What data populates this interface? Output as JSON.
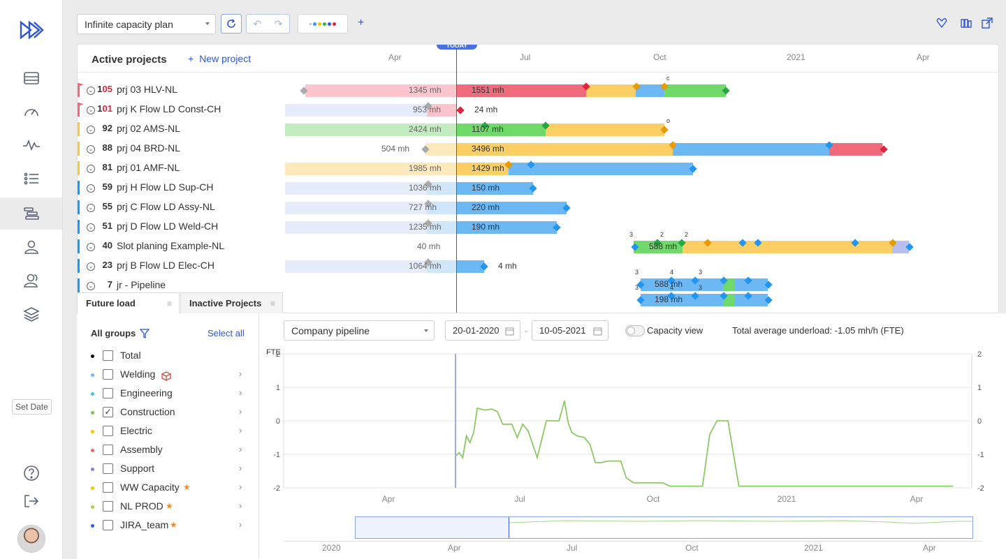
{
  "toolbar": {
    "plan_select": "Infinite capacity plan",
    "add": "+"
  },
  "gantt": {
    "header_title": "Active projects",
    "new_project": "New project",
    "today": "TODAY",
    "months": [
      "Apr",
      "Jul",
      "Oct",
      "2021",
      "Apr"
    ],
    "rows": [
      {
        "prio_a": "1",
        "prio_b": "05",
        "name": "prj 03 HLV-NL",
        "color": "#f06a7c",
        "flagged": true,
        "left_mh": "1345 mh",
        "right_mh": "1551 mh"
      },
      {
        "prio_a": "1",
        "prio_b": "01",
        "name": "prj K Flow LD Const-CH",
        "color": "#f06a7c",
        "flagged": true,
        "left_mh": "953 mh",
        "right_mh": "24 mh"
      },
      {
        "prio_a": "",
        "prio_b": "92",
        "name": "prj 02 AMS-NL",
        "color": "#f9c64a",
        "flagged": false,
        "left_mh": "2424 mh",
        "right_mh": "1107 mh"
      },
      {
        "prio_a": "",
        "prio_b": "88",
        "name": "prj 04 BRD-NL",
        "color": "#f9c64a",
        "flagged": false,
        "left_mh": "504 mh",
        "right_mh": "3496 mh"
      },
      {
        "prio_a": "",
        "prio_b": "81",
        "name": "prj 01 AMF-NL",
        "color": "#f9c64a",
        "flagged": false,
        "left_mh": "1985 mh",
        "right_mh": "1429 mh"
      },
      {
        "prio_a": "",
        "prio_b": "59",
        "name": "prj H Flow LD Sup-CH",
        "color": "#2196f3",
        "flagged": false,
        "left_mh": "1036 mh",
        "right_mh": "150 mh"
      },
      {
        "prio_a": "",
        "prio_b": "55",
        "name": "prj C Flow LD Assy-NL",
        "color": "#2196f3",
        "flagged": false,
        "left_mh": "727 mh",
        "right_mh": "220 mh"
      },
      {
        "prio_a": "",
        "prio_b": "51",
        "name": "prj D Flow LD Weld-CH",
        "color": "#2196f3",
        "flagged": false,
        "left_mh": "1235 mh",
        "right_mh": "190 mh"
      },
      {
        "prio_a": "",
        "prio_b": "40",
        "name": "Slot planing Example-NL",
        "color": "#2196f3",
        "flagged": false,
        "left_mh": "40 mh",
        "right_mh": "588 mh"
      },
      {
        "prio_a": "",
        "prio_b": "23",
        "name": "prj B Flow LD Elec-CH",
        "color": "#2196f3",
        "flagged": false,
        "left_mh": "1064 mh",
        "right_mh": "4 mh"
      },
      {
        "prio_a": "",
        "prio_b": "7",
        "name": "jr - Pipeline",
        "color": "#2196f3",
        "flagged": false,
        "left_mh": "",
        "right_mh": ""
      }
    ],
    "pipeline_mh_1": "588 mh",
    "pipeline_mh_2": "198 mh"
  },
  "tabs": {
    "future_load": "Future load",
    "inactive": "Inactive Projects"
  },
  "groups": {
    "title": "All groups",
    "select_all": "Select all",
    "items": [
      {
        "label": "Total",
        "dot": "#111111",
        "checked": false
      },
      {
        "label": "Welding",
        "dot": "#7fb0f5",
        "checked": false
      },
      {
        "label": "Engineering",
        "dot": "#4fc3d9",
        "checked": false
      },
      {
        "label": "Construction",
        "dot": "#7cc25c",
        "checked": true
      },
      {
        "label": "Electric",
        "dot": "#f5c400",
        "checked": false
      },
      {
        "label": "Assembly",
        "dot": "#e96a6a",
        "checked": false
      },
      {
        "label": "Support",
        "dot": "#8a7fd4",
        "checked": false
      },
      {
        "label": "WW Capacity",
        "dot": "#f5c400",
        "checked": false
      },
      {
        "label": "NL PROD",
        "dot": "#a8d04c",
        "checked": false
      },
      {
        "label": "JIRA_team",
        "dot": "#2d5fd8",
        "checked": false
      }
    ]
  },
  "load": {
    "pipeline_select": "Company pipeline",
    "date_from": "20-01-2020",
    "date_sep": "-",
    "date_to": "10-05-2021",
    "capacity_view": "Capacity view",
    "underload": "Total average underload: -1.05 mh/h (FTE)",
    "ylabel": "FTE",
    "nav_ticks": [
      "2020",
      "Apr",
      "Jul",
      "Oct",
      "2021",
      "Apr"
    ]
  },
  "left_nav": {
    "set_date": "Set Date"
  },
  "chart_data": {
    "type": "line",
    "ylabel": "FTE",
    "ylim": [
      -2,
      2
    ],
    "yticks": [
      -2,
      -1,
      0,
      1,
      2
    ],
    "xticks": [
      "Apr",
      "Jul",
      "Oct",
      "2021",
      "Apr"
    ],
    "grid": true,
    "series": [
      {
        "color": "#8cc965",
        "x": [
          0,
          0.1,
          0.2,
          0.3,
          0.4,
          0.5,
          0.6,
          0.8,
          1.0,
          1.15,
          1.3,
          1.45,
          1.55,
          1.7,
          1.85,
          2.0,
          2.25,
          2.5,
          2.7,
          2.85,
          3.0,
          3.1,
          3.2,
          3.35,
          3.55,
          3.7,
          3.85,
          4.0,
          4.2,
          4.4,
          4.55,
          4.7,
          4.9,
          5.05,
          5.2,
          5.35,
          5.55,
          5.7,
          5.9,
          6.1,
          6.3,
          6.5,
          6.8,
          7.0,
          7.2,
          7.5,
          7.8,
          8.1,
          8.4,
          8.55,
          8.7,
          8.8,
          8.9,
          9.0,
          9.15,
          9.3,
          9.6,
          9.8,
          10.0,
          10.2,
          10.4,
          10.55,
          10.7,
          11.0,
          11.3,
          11.6,
          11.9,
          12.2,
          12.5,
          12.8,
          13.0,
          13.2,
          13.5,
          13.7
        ],
        "values": [
          -1.05,
          -0.95,
          -1.1,
          -0.45,
          -0.65,
          -0.35,
          0.38,
          0.32,
          0.35,
          0.28,
          -0.1,
          -0.1,
          -0.1,
          -0.5,
          -0.1,
          -0.3,
          -1.1,
          0,
          0,
          0,
          0.6,
          -0.05,
          -0.35,
          -0.45,
          -0.5,
          -0.7,
          -1.25,
          -1.25,
          -1.2,
          -1.2,
          -1.2,
          -1.7,
          -1.85,
          -1.85,
          -1.85,
          -1.85,
          -1.85,
          -1.85,
          -1.95,
          -1.95,
          -1.95,
          -1.95,
          -1.95,
          -0.4,
          0,
          0,
          -1.95,
          -1.95,
          -1.95,
          -1.95,
          -1.95,
          -1.95,
          -1.95,
          -1.95,
          -1.95,
          -1.95,
          -1.95,
          -1.95,
          -1.95,
          -1.95,
          -1.95,
          -1.95,
          -1.95,
          -1.95,
          -1.95,
          -1.95,
          -1.95,
          -1.95,
          -1.95,
          -1.95,
          -1.95,
          -1.95,
          -1.95,
          -1.95
        ]
      }
    ]
  }
}
